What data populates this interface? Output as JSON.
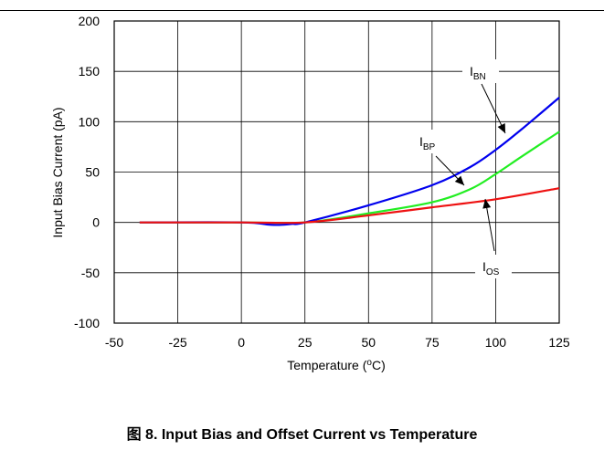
{
  "caption": {
    "figure_label": "图 8.",
    "title": "Input Bias and Offset Current vs Temperature"
  },
  "chart_data": {
    "type": "line",
    "title": "",
    "xlabel": "Temperature (",
    "xlabel_sup": "o",
    "xlabel_tail": "C)",
    "ylabel": "Input Bias Current (pA)",
    "xlim": [
      -50,
      125
    ],
    "ylim": [
      -100,
      200
    ],
    "x_ticks": [
      -50,
      -25,
      0,
      25,
      50,
      75,
      100,
      125
    ],
    "y_ticks": [
      -100,
      -50,
      0,
      50,
      100,
      150,
      200
    ],
    "grid": true,
    "legend": "none",
    "series": [
      {
        "name": "I_BN",
        "color": "#0000ee",
        "x": [
          -40,
          0,
          10,
          15,
          20,
          25,
          50,
          75,
          90,
          100,
          110,
          125
        ],
        "y": [
          0,
          0,
          -2,
          -2.5,
          -1.5,
          0,
          17,
          37,
          55,
          72,
          92,
          124
        ]
      },
      {
        "name": "I_BP",
        "color": "#22ee22",
        "x": [
          -40,
          0,
          25,
          50,
          75,
          90,
          100,
          110,
          125
        ],
        "y": [
          0,
          0,
          0,
          9,
          20,
          33,
          48,
          65,
          90
        ]
      },
      {
        "name": "I_OS",
        "color": "#ee1111",
        "x": [
          -40,
          0,
          25,
          50,
          75,
          100,
          125
        ],
        "y": [
          0,
          0,
          0,
          7,
          15,
          23,
          34
        ]
      }
    ],
    "annotations": [
      {
        "main": "I",
        "sub": "BN"
      },
      {
        "main": "I",
        "sub": "BP"
      },
      {
        "main": "I",
        "sub": "OS"
      }
    ]
  }
}
